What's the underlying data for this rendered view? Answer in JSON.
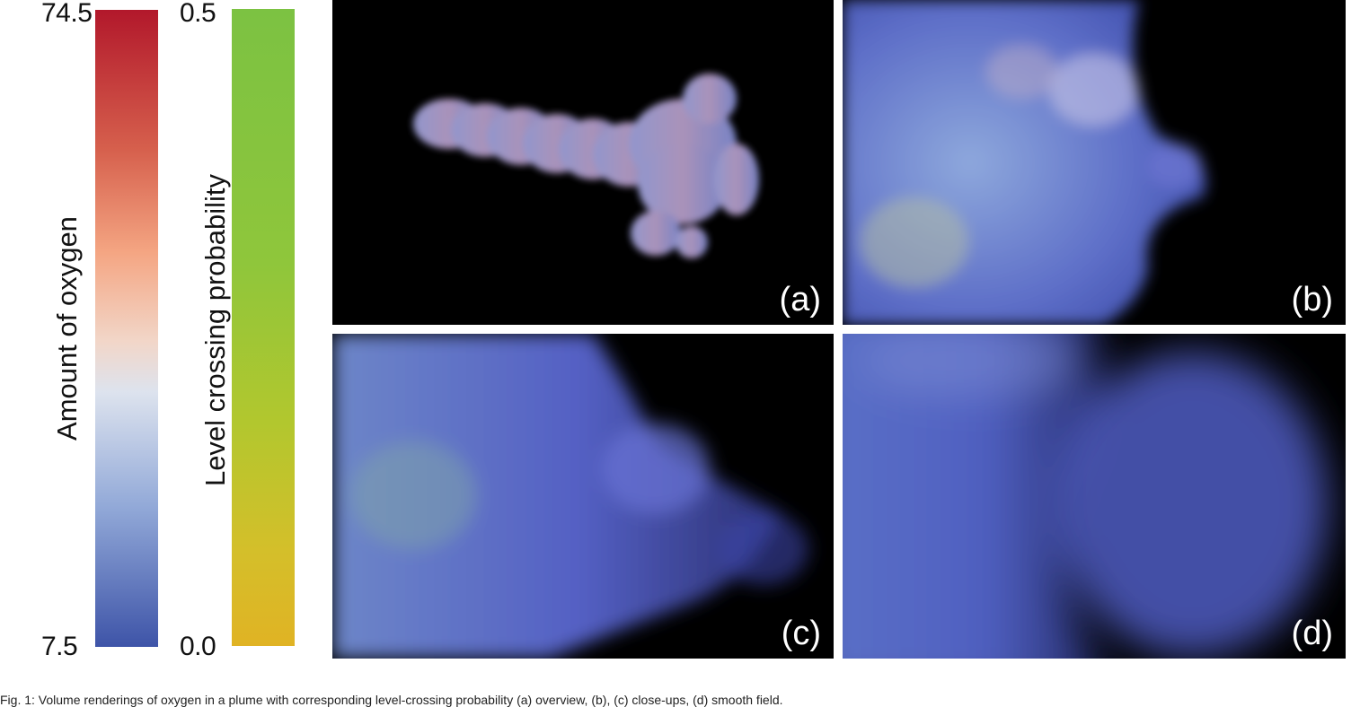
{
  "colorbars": {
    "oxygen": {
      "label": "Amount of oxygen",
      "max": "74.5",
      "min": "7.5",
      "colors": [
        "#b2182b",
        "#f4a582",
        "#dde3ee",
        "#3e54a8"
      ]
    },
    "probability": {
      "label": "Level crossing probability",
      "max": "0.5",
      "min": "0.0",
      "colors": [
        "#7cc242",
        "#e0b324"
      ]
    }
  },
  "panels": [
    {
      "id": "a",
      "label": "(a)"
    },
    {
      "id": "b",
      "label": "(b)"
    },
    {
      "id": "c",
      "label": "(c)"
    },
    {
      "id": "d",
      "label": "(d)"
    }
  ],
  "caption": "Fig. 1: Volume renderings of oxygen in a plume with corresponding level-crossing probability (a) overview, (b), (c) close-ups, (d) smooth field."
}
